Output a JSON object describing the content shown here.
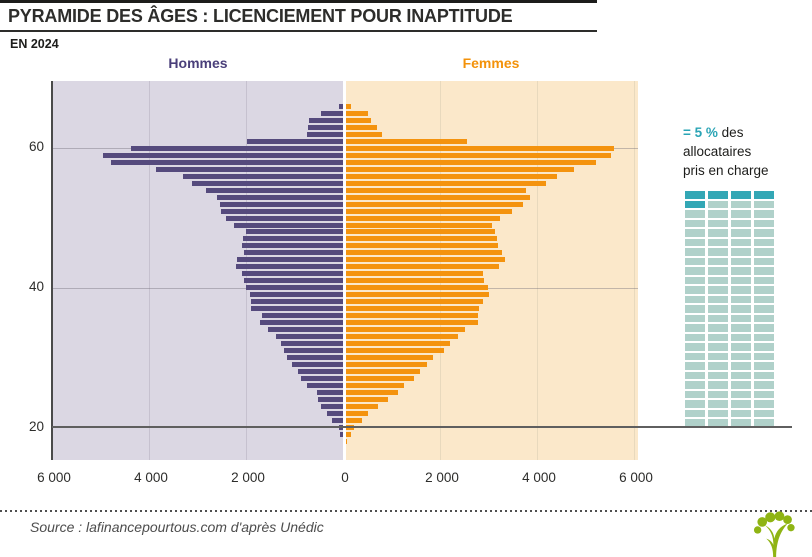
{
  "header": {
    "title": "PYRAMIDE DES ÂGES : LICENCIEMENT POUR INAPTITUDE",
    "subtitle": "EN 2024"
  },
  "colors": {
    "hommes": "#554a7d",
    "femmes": "#f4930e",
    "left_bg": "#dbd7e3",
    "right_bg": "#fbe8ca",
    "legend_dark": "#33a7b5",
    "legend_light": "#b0d1ca",
    "logo_green": "#8fb414"
  },
  "chart_data": {
    "type": "bar",
    "variant": "population-pyramid",
    "title": "PYRAMIDE DES ÂGES : LICENCIEMENT POUR INAPTITUDE",
    "subtitle": "EN 2024",
    "left_header": "Hommes",
    "right_header": "Femmes",
    "unit": "nombre d'allocataires",
    "ages": [
      18,
      19,
      20,
      21,
      22,
      23,
      24,
      25,
      26,
      27,
      28,
      29,
      30,
      31,
      32,
      33,
      34,
      35,
      36,
      37,
      38,
      39,
      40,
      41,
      42,
      43,
      44,
      45,
      46,
      47,
      48,
      49,
      50,
      51,
      52,
      53,
      54,
      55,
      56,
      57,
      58,
      59,
      60,
      61,
      62,
      63,
      64,
      65,
      66
    ],
    "series": [
      {
        "name": "Hommes",
        "side": "left",
        "color": "#554a7d",
        "values": [
          20,
          80,
          110,
          245,
          350,
          475,
          535,
          560,
          760,
          885,
          950,
          1070,
          1175,
          1240,
          1300,
          1400,
          1570,
          1730,
          1690,
          1915,
          1915,
          1940,
          2020,
          2060,
          2100,
          2230,
          2200,
          2060,
          2100,
          2080,
          2030,
          2270,
          2440,
          2530,
          2560,
          2620,
          2840,
          3130,
          3310,
          3880,
          4800,
          4960,
          4400,
          2000,
          770,
          750,
          720,
          470,
          100
        ]
      },
      {
        "name": "Femmes",
        "side": "right",
        "color": "#f4930e",
        "values": [
          30,
          103,
          158,
          323,
          447,
          650,
          860,
          1065,
          1190,
          1410,
          1525,
          1670,
          1800,
          2015,
          2145,
          2315,
          2460,
          2715,
          2730,
          2750,
          2835,
          2940,
          2920,
          2850,
          2835,
          3145,
          3275,
          3210,
          3125,
          3110,
          3070,
          3020,
          3165,
          3415,
          3640,
          3790,
          3710,
          4120,
          4350,
          4700,
          5150,
          5460,
          5520,
          2490,
          740,
          640,
          515,
          450,
          100
        ]
      }
    ],
    "x_axis": {
      "max": 6000,
      "tick_values": [
        -6000,
        -4000,
        -2000,
        0,
        2000,
        4000,
        6000
      ],
      "tick_labels": [
        "6 000",
        "4 000",
        "2 000",
        "0",
        "2 000",
        "4 000",
        "6 000"
      ]
    },
    "y_axis": {
      "tick_values": [
        20,
        40,
        60
      ],
      "tick_labels": [
        "20",
        "40",
        "60"
      ]
    },
    "grid": true,
    "legend_position": "right"
  },
  "legend": {
    "pct_label": "= 5 %",
    "pct_suffix": "des",
    "line2": "allocataires",
    "line3": "pris en charge",
    "grid": {
      "columns": 4,
      "rows": 25,
      "highlighted_cells": 5
    }
  },
  "footer": {
    "source": "Source : lafinancepourtous.com d'après Unédic"
  }
}
